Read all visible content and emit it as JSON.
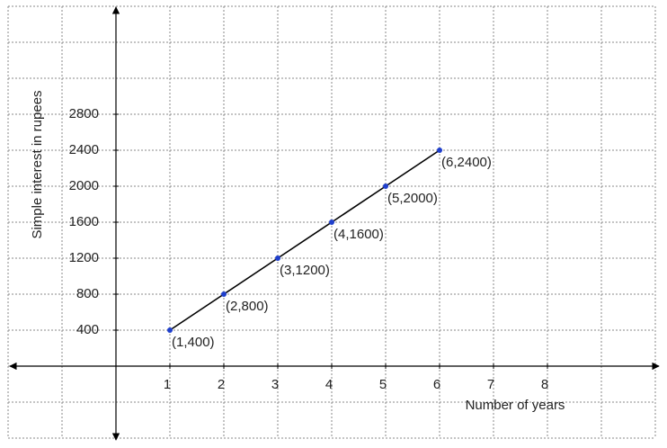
{
  "chart_data": {
    "type": "line",
    "x_label": "Number of years",
    "y_label": "Simple interest in rupees",
    "x": [
      1,
      2,
      3,
      4,
      5,
      6
    ],
    "values": [
      400,
      800,
      1200,
      1600,
      2000,
      2400
    ],
    "value_labels": [
      "(1,400)",
      "(2,800)",
      "(3,1200)",
      "(4,1600)",
      "(5,2000)",
      "(6,2400)"
    ],
    "color": "#000000",
    "marker_color": "#1f3fcc",
    "xlim": [
      -2,
      10
    ],
    "ylim": [
      -800,
      4000
    ],
    "xticks": [
      1,
      2,
      3,
      4,
      5,
      6,
      7,
      8
    ],
    "yticks": [
      400,
      800,
      1200,
      1600,
      2000,
      2400,
      2800
    ],
    "grid": true
  }
}
